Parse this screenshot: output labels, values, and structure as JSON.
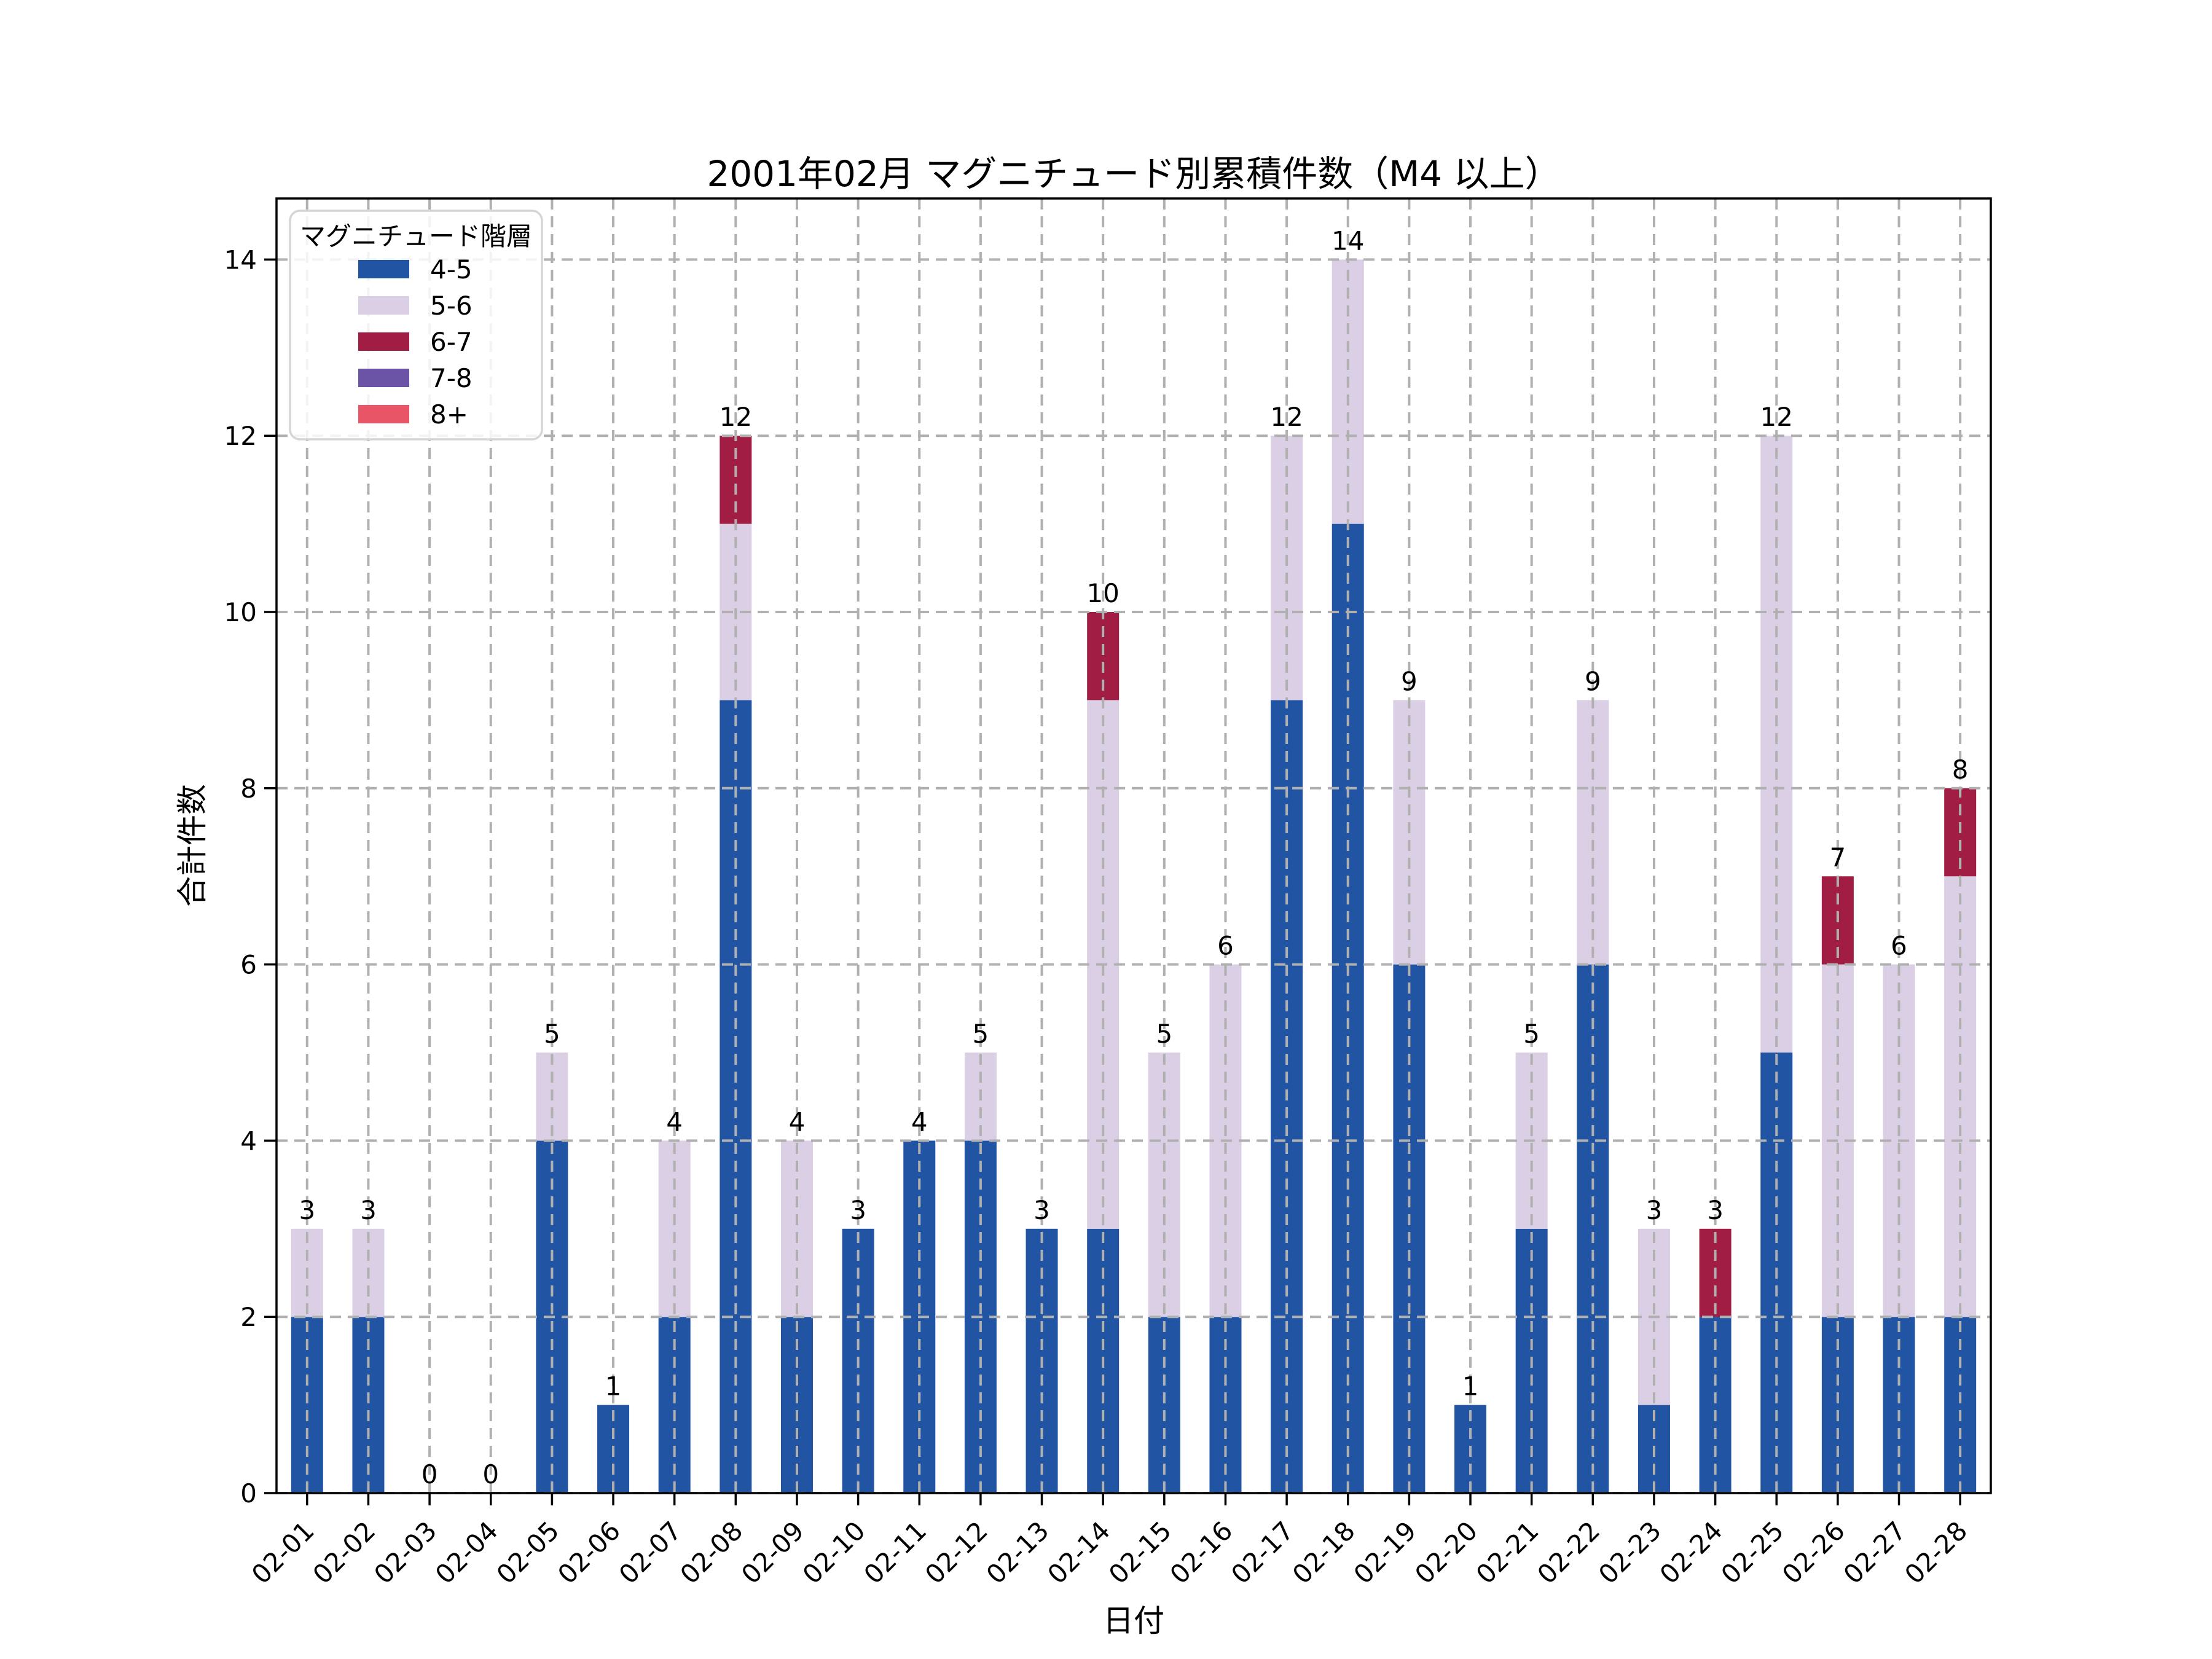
{
  "chart_data": {
    "type": "bar",
    "stacked": true,
    "title": "2001年02月 マグニチュード別累積件数（M4 以上）",
    "xlabel": "日付",
    "ylabel": "合計件数",
    "legend_title": "マグニチュード階層",
    "legend_position": "upper left",
    "grid": true,
    "grid_style": "dashed",
    "ylim": [
      0,
      14.7
    ],
    "yticks": [
      0,
      2,
      4,
      6,
      8,
      10,
      12,
      14
    ],
    "categories": [
      "02-01",
      "02-02",
      "02-03",
      "02-04",
      "02-05",
      "02-06",
      "02-07",
      "02-08",
      "02-09",
      "02-10",
      "02-11",
      "02-12",
      "02-13",
      "02-14",
      "02-15",
      "02-16",
      "02-17",
      "02-18",
      "02-19",
      "02-20",
      "02-21",
      "02-22",
      "02-23",
      "02-24",
      "02-25",
      "02-26",
      "02-27",
      "02-28"
    ],
    "series": [
      {
        "name": "4-5",
        "color": "#2155A4",
        "values": [
          2,
          2,
          0,
          0,
          4,
          1,
          2,
          9,
          2,
          3,
          4,
          4,
          3,
          3,
          2,
          2,
          9,
          11,
          6,
          1,
          3,
          6,
          1,
          2,
          5,
          2,
          2,
          2
        ]
      },
      {
        "name": "5-6",
        "color": "#DBCFE5",
        "values": [
          1,
          1,
          0,
          0,
          1,
          0,
          2,
          2,
          2,
          0,
          0,
          1,
          0,
          6,
          3,
          4,
          3,
          3,
          3,
          0,
          2,
          3,
          2,
          0,
          7,
          4,
          4,
          5
        ]
      },
      {
        "name": "6-7",
        "color": "#A21D43",
        "values": [
          0,
          0,
          0,
          0,
          0,
          0,
          0,
          1,
          0,
          0,
          0,
          0,
          0,
          1,
          0,
          0,
          0,
          0,
          0,
          0,
          0,
          0,
          0,
          1,
          0,
          1,
          0,
          1
        ]
      },
      {
        "name": "7-8",
        "color": "#6B54A5",
        "values": [
          0,
          0,
          0,
          0,
          0,
          0,
          0,
          0,
          0,
          0,
          0,
          0,
          0,
          0,
          0,
          0,
          0,
          0,
          0,
          0,
          0,
          0,
          0,
          0,
          0,
          0,
          0,
          0
        ]
      },
      {
        "name": "8+",
        "color": "#E85566",
        "values": [
          0,
          0,
          0,
          0,
          0,
          0,
          0,
          0,
          0,
          0,
          0,
          0,
          0,
          0,
          0,
          0,
          0,
          0,
          0,
          0,
          0,
          0,
          0,
          0,
          0,
          0,
          0,
          0
        ]
      }
    ],
    "totals": [
      3,
      3,
      0,
      0,
      5,
      1,
      4,
      12,
      4,
      3,
      4,
      5,
      3,
      10,
      5,
      6,
      12,
      14,
      9,
      1,
      5,
      9,
      3,
      3,
      12,
      7,
      6,
      8
    ]
  }
}
